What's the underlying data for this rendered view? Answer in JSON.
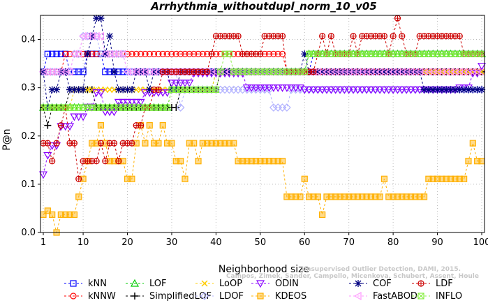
{
  "chart_data": {
    "type": "line",
    "title": "Arrhythmia_withoutdupl_norm_10_v05",
    "xlabel": "Neighborhood size",
    "ylabel": "P@n",
    "xlim": [
      1,
      100
    ],
    "ylim": [
      0,
      0.45
    ],
    "xticks": [
      1,
      10,
      20,
      30,
      40,
      50,
      60,
      70,
      80,
      90,
      100
    ],
    "yticks": [
      0.0,
      0.1,
      0.2,
      0.3,
      0.4
    ],
    "grid": true,
    "legend_position": "bottom",
    "watermark": [
      "Campos, Zimek, Sander, Campello, Micenkova, Schubert, Assent, Houle",
      "Unsupervised Outlier Detection, DAMI, 2015."
    ],
    "series": [
      {
        "name": "kNN",
        "color": "#0000ff",
        "marker": "square",
        "points": [
          [
            1,
            0.333
          ],
          [
            2,
            0.37
          ],
          [
            6,
            0.37
          ],
          [
            7,
            0.333
          ],
          [
            9,
            0.333
          ],
          [
            10,
            0.333
          ],
          [
            11,
            0.37
          ],
          [
            14,
            0.37
          ],
          [
            15,
            0.333
          ],
          [
            30,
            0.333
          ],
          [
            31,
            0.333
          ],
          [
            45,
            0.333
          ],
          [
            60,
            0.333
          ],
          [
            62,
            0.37
          ],
          [
            100,
            0.37
          ]
        ]
      },
      {
        "name": "kNNW",
        "color": "#ff0000",
        "marker": "circle",
        "points": [
          [
            1,
            0.333
          ],
          [
            4,
            0.333
          ],
          [
            5,
            0.333
          ],
          [
            6,
            0.37
          ],
          [
            15,
            0.37
          ],
          [
            50,
            0.37
          ],
          [
            54,
            0.37
          ],
          [
            56,
            0.333
          ],
          [
            62,
            0.333
          ],
          [
            85,
            0.333
          ],
          [
            95,
            0.333
          ],
          [
            100,
            0.333
          ]
        ]
      },
      {
        "name": "LOF",
        "color": "#00cc00",
        "marker": "triangle",
        "points": [
          [
            1,
            0.259
          ],
          [
            20,
            0.259
          ],
          [
            30,
            0.296
          ],
          [
            31,
            0.296
          ],
          [
            40,
            0.333
          ],
          [
            60,
            0.333
          ],
          [
            61,
            0.37
          ],
          [
            100,
            0.37
          ]
        ]
      },
      {
        "name": "SimplifiedLOF",
        "color": "#000000",
        "marker": "plus",
        "points": [
          [
            1,
            0.259
          ],
          [
            2,
            0.222
          ],
          [
            3,
            0.259
          ],
          [
            6,
            0.259
          ],
          [
            7,
            0.296
          ],
          [
            12,
            0.296
          ],
          [
            13,
            0.259
          ],
          [
            31,
            0.259
          ],
          [
            32,
            0.296
          ],
          [
            40,
            0.296
          ],
          [
            41,
            0.333
          ],
          [
            100,
            0.333
          ]
        ]
      },
      {
        "name": "LoOP",
        "color": "#ffcc00",
        "marker": "x",
        "points": [
          [
            1,
            0.259
          ],
          [
            2,
            0.259
          ],
          [
            5,
            0.259
          ],
          [
            8,
            0.296
          ],
          [
            30,
            0.296
          ],
          [
            40,
            0.333
          ],
          [
            100,
            0.333
          ]
        ]
      },
      {
        "name": "LDOF",
        "color": "#b0b0ff",
        "marker": "diamond",
        "points": [
          [
            1,
            0.333
          ],
          [
            5,
            0.333
          ],
          [
            8,
            0.37
          ],
          [
            10,
            0.407
          ],
          [
            12,
            0.407
          ],
          [
            14,
            0.37
          ],
          [
            20,
            0.333
          ],
          [
            32,
            0.259
          ],
          [
            33,
            0.296
          ],
          [
            50,
            0.296
          ],
          [
            53,
            0.259
          ],
          [
            55,
            0.259
          ],
          [
            57,
            0.296
          ],
          [
            100,
            0.296
          ]
        ]
      },
      {
        "name": "ODIN",
        "color": "#8800ff",
        "marker": "triangle-down",
        "points": [
          [
            1,
            0.12
          ],
          [
            2,
            0.16
          ],
          [
            3,
            0.18
          ],
          [
            5,
            0.22
          ],
          [
            8,
            0.24
          ],
          [
            10,
            0.24
          ],
          [
            11,
            0.26
          ],
          [
            13,
            0.29
          ],
          [
            15,
            0.25
          ],
          [
            18,
            0.27
          ],
          [
            22,
            0.27
          ],
          [
            24,
            0.29
          ],
          [
            27,
            0.29
          ],
          [
            30,
            0.31
          ],
          [
            33,
            0.31
          ],
          [
            35,
            0.33
          ],
          [
            45,
            0.33
          ],
          [
            47,
            0.3
          ],
          [
            52,
            0.3
          ],
          [
            56,
            0.3
          ],
          [
            60,
            0.296
          ],
          [
            70,
            0.296
          ],
          [
            80,
            0.296
          ],
          [
            85,
            0.296
          ],
          [
            90,
            0.296
          ],
          [
            95,
            0.3
          ],
          [
            98,
            0.33
          ],
          [
            100,
            0.345
          ]
        ]
      },
      {
        "name": "KDEOS",
        "color": "#ffb000",
        "marker": "square-filled",
        "points": [
          [
            1,
            0.037
          ],
          [
            2,
            0.045
          ],
          [
            3,
            0.037
          ],
          [
            4,
            0.0
          ],
          [
            5,
            0.037
          ],
          [
            8,
            0.037
          ],
          [
            9,
            0.074
          ],
          [
            10,
            0.111
          ],
          [
            11,
            0.148
          ],
          [
            12,
            0.185
          ],
          [
            13,
            0.185
          ],
          [
            14,
            0.222
          ],
          [
            15,
            0.185
          ],
          [
            16,
            0.148
          ],
          [
            19,
            0.148
          ],
          [
            20,
            0.111
          ],
          [
            21,
            0.111
          ],
          [
            22,
            0.185
          ],
          [
            23,
            0.222
          ],
          [
            24,
            0.185
          ],
          [
            25,
            0.222
          ],
          [
            26,
            0.185
          ],
          [
            27,
            0.185
          ],
          [
            28,
            0.222
          ],
          [
            29,
            0.185
          ],
          [
            30,
            0.185
          ],
          [
            31,
            0.148
          ],
          [
            32,
            0.148
          ],
          [
            33,
            0.111
          ],
          [
            34,
            0.185
          ],
          [
            35,
            0.185
          ],
          [
            36,
            0.148
          ],
          [
            37,
            0.185
          ],
          [
            38,
            0.185
          ],
          [
            44,
            0.185
          ],
          [
            45,
            0.148
          ],
          [
            55,
            0.148
          ],
          [
            56,
            0.074
          ],
          [
            59,
            0.074
          ],
          [
            60,
            0.111
          ],
          [
            61,
            0.074
          ],
          [
            63,
            0.074
          ],
          [
            64,
            0.037
          ],
          [
            65,
            0.074
          ],
          [
            77,
            0.074
          ],
          [
            78,
            0.111
          ],
          [
            79,
            0.074
          ],
          [
            87,
            0.074
          ],
          [
            88,
            0.111
          ],
          [
            96,
            0.111
          ],
          [
            97,
            0.148
          ],
          [
            98,
            0.185
          ],
          [
            99,
            0.148
          ],
          [
            100,
            0.148
          ]
        ]
      },
      {
        "name": "COF",
        "color": "#000080",
        "marker": "star",
        "points": [
          [
            1,
            0.333
          ],
          [
            2,
            0.259
          ],
          [
            3,
            0.296
          ],
          [
            5,
            0.333
          ],
          [
            6,
            0.333
          ],
          [
            7,
            0.296
          ],
          [
            10,
            0.296
          ],
          [
            11,
            0.37
          ],
          [
            12,
            0.407
          ],
          [
            13,
            0.444
          ],
          [
            14,
            0.444
          ],
          [
            15,
            0.37
          ],
          [
            16,
            0.407
          ],
          [
            17,
            0.333
          ],
          [
            18,
            0.296
          ],
          [
            20,
            0.296
          ],
          [
            22,
            0.333
          ],
          [
            24,
            0.333
          ],
          [
            25,
            0.296
          ],
          [
            26,
            0.333
          ],
          [
            28,
            0.333
          ],
          [
            30,
            0.296
          ],
          [
            32,
            0.333
          ],
          [
            59,
            0.333
          ],
          [
            60,
            0.37
          ],
          [
            61,
            0.333
          ],
          [
            86,
            0.333
          ],
          [
            87,
            0.296
          ],
          [
            100,
            0.296
          ]
        ]
      },
      {
        "name": "FastABOD",
        "color": "#ff99ff",
        "marker": "triangle-left",
        "points": [
          [
            1,
            0.333
          ],
          [
            5,
            0.333
          ],
          [
            8,
            0.37
          ],
          [
            10,
            0.407
          ],
          [
            12,
            0.407
          ],
          [
            15,
            0.37
          ],
          [
            20,
            0.333
          ],
          [
            100,
            0.333
          ]
        ]
      },
      {
        "name": "LDF",
        "color": "#cc0000",
        "marker": "circle-plus",
        "points": [
          [
            1,
            0.185
          ],
          [
            2,
            0.185
          ],
          [
            3,
            0.148
          ],
          [
            4,
            0.185
          ],
          [
            5,
            0.222
          ],
          [
            6,
            0.259
          ],
          [
            7,
            0.185
          ],
          [
            8,
            0.185
          ],
          [
            9,
            0.111
          ],
          [
            10,
            0.148
          ],
          [
            11,
            0.148
          ],
          [
            12,
            0.148
          ],
          [
            13,
            0.148
          ],
          [
            14,
            0.185
          ],
          [
            15,
            0.148
          ],
          [
            16,
            0.185
          ],
          [
            17,
            0.185
          ],
          [
            18,
            0.148
          ],
          [
            19,
            0.185
          ],
          [
            20,
            0.185
          ],
          [
            22,
            0.222
          ],
          [
            24,
            0.259
          ],
          [
            26,
            0.296
          ],
          [
            28,
            0.333
          ],
          [
            30,
            0.333
          ],
          [
            38,
            0.333
          ],
          [
            39,
            0.37
          ],
          [
            40,
            0.407
          ],
          [
            45,
            0.407
          ],
          [
            46,
            0.37
          ],
          [
            50,
            0.37
          ],
          [
            51,
            0.407
          ],
          [
            55,
            0.407
          ],
          [
            56,
            0.333
          ],
          [
            62,
            0.333
          ],
          [
            63,
            0.37
          ],
          [
            64,
            0.407
          ],
          [
            65,
            0.37
          ],
          [
            66,
            0.407
          ],
          [
            67,
            0.37
          ],
          [
            70,
            0.37
          ],
          [
            71,
            0.407
          ],
          [
            72,
            0.37
          ],
          [
            73,
            0.407
          ],
          [
            78,
            0.407
          ],
          [
            79,
            0.37
          ],
          [
            80,
            0.407
          ],
          [
            81,
            0.444
          ],
          [
            82,
            0.407
          ],
          [
            83,
            0.37
          ],
          [
            85,
            0.37
          ],
          [
            86,
            0.407
          ],
          [
            95,
            0.407
          ],
          [
            96,
            0.37
          ],
          [
            100,
            0.37
          ]
        ]
      },
      {
        "name": "INFLO",
        "color": "#88ee44",
        "marker": "square-x",
        "points": [
          [
            1,
            0.259
          ],
          [
            20,
            0.259
          ],
          [
            30,
            0.296
          ],
          [
            31,
            0.296
          ],
          [
            41,
            0.333
          ],
          [
            42,
            0.37
          ],
          [
            43,
            0.37
          ],
          [
            44,
            0.333
          ],
          [
            60,
            0.333
          ],
          [
            61,
            0.37
          ],
          [
            100,
            0.37
          ]
        ]
      }
    ]
  }
}
